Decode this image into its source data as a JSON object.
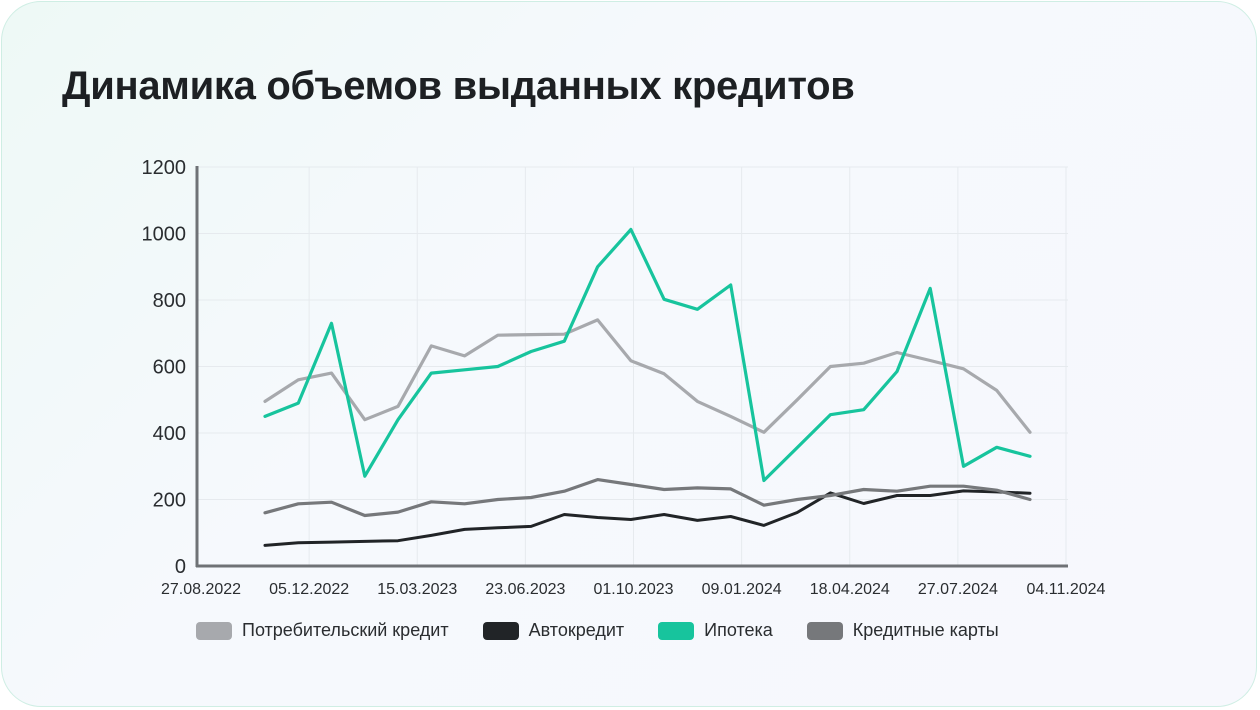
{
  "chart_data": {
    "type": "line",
    "title": "Динамика объемов выданных кредитов",
    "xlabel": "",
    "ylabel": "",
    "ylim": [
      0,
      1200
    ],
    "yticks": [
      0,
      200,
      400,
      600,
      800,
      1000,
      1200
    ],
    "x_tick_labels": [
      "27.08.2022",
      "05.12.2022",
      "15.03.2023",
      "23.06.2023",
      "01.10.2023",
      "09.01.2024",
      "18.04.2024",
      "27.07.2024",
      "04.11.2024"
    ],
    "grid": true,
    "legend_position": "bottom",
    "series": [
      {
        "name": "Потребительский кредит",
        "color": "#a7a9ad",
        "values": [
          495,
          560,
          580,
          440,
          480,
          662,
          632,
          694,
          696,
          697,
          740,
          617,
          578,
          495,
          450,
          402,
          500,
          600,
          610,
          642,
          618,
          593,
          528,
          402
        ]
      },
      {
        "name": "Автокредит",
        "color": "#212427",
        "values": [
          62,
          70,
          72,
          74,
          76,
          92,
          110,
          115,
          119,
          155,
          146,
          140,
          155,
          137,
          149,
          122,
          161,
          220,
          188,
          212,
          212,
          226,
          223,
          219
        ]
      },
      {
        "name": "Ипотека",
        "color": "#17c49d",
        "values": [
          450,
          490,
          730,
          270,
          440,
          580,
          590,
          600,
          645,
          676,
          900,
          1012,
          802,
          772,
          845,
          257,
          356,
          455,
          470,
          585,
          835,
          300,
          357,
          330
        ]
      },
      {
        "name": "Кредитные карты",
        "color": "#76787b",
        "values": [
          160,
          187,
          192,
          152,
          162,
          193,
          187,
          200,
          206,
          225,
          260,
          245,
          230,
          235,
          232,
          183,
          200,
          212,
          230,
          225,
          240,
          240,
          228,
          200
        ]
      }
    ]
  }
}
